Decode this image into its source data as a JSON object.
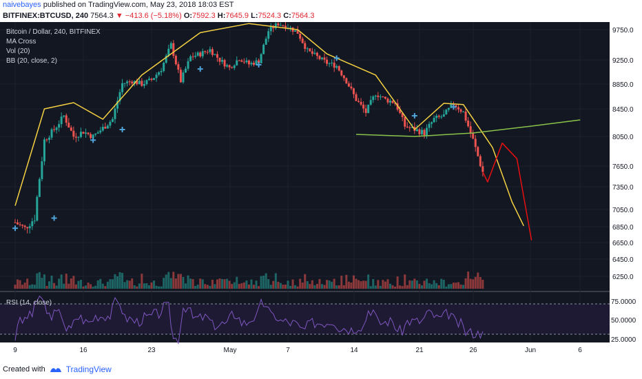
{
  "header": {
    "author": "naivebayes",
    "published_text": "published on TradingView.com, May 23, 2018 18:03 EST",
    "symbol": "BITFINEX:BTCUSD, 240",
    "last_price": "7564.3",
    "change": "▼ −413.6 (−5.18%)",
    "ohlc": {
      "o_label": "O:",
      "o": "7592.3",
      "h_label": "H:",
      "h": "7645.9",
      "l_label": "L:",
      "l": "7524.3",
      "c_label": "C:",
      "c": "7564.3"
    }
  },
  "legend": [
    "Bitcoin / Dollar, 240, BITFINEX",
    "MA Cross",
    "Vol (20)",
    "BB (20, close, 2)"
  ],
  "rsi_label": "RSI (14, close)",
  "footer": {
    "created_with": "Created with",
    "brand": "TradingView"
  },
  "colors": {
    "background": "#131722",
    "up": "#26a69a",
    "down": "#ef5350",
    "projection_yellow": "#f5d142",
    "projection_red": "#e81010",
    "ma_green": "#8bc34a",
    "rsi": "#7e57c2",
    "marker": "#4fa3d8"
  },
  "chart_data": {
    "type": "candlestick",
    "y_axis_labels": [
      "9750.0",
      "9250.0",
      "8850.0",
      "8450.0",
      "8050.0",
      "7650.0",
      "7350.0",
      "7050.0",
      "6850.0",
      "6650.0",
      "6450.0",
      "6250.0"
    ],
    "ylim": [
      6150,
      9900
    ],
    "x_axis_labels": [
      "9",
      "16",
      "23",
      "May",
      "7",
      "14",
      "21",
      "26",
      "Jun",
      "6"
    ],
    "rsi_axis_labels": [
      "75.0000",
      "50.0000",
      "25.0000"
    ],
    "rsi_bands": [
      70,
      30
    ],
    "price_path_days": [
      [
        9,
        6900
      ],
      [
        10,
        6830
      ],
      [
        11,
        6950
      ],
      [
        12,
        8000
      ],
      [
        13,
        8150
      ],
      [
        14,
        8350
      ],
      [
        15,
        8050
      ],
      [
        16,
        8120
      ],
      [
        17,
        8050
      ],
      [
        18,
        8170
      ],
      [
        19,
        8300
      ],
      [
        20,
        8860
      ],
      [
        21,
        8900
      ],
      [
        22,
        8850
      ],
      [
        23,
        8920
      ],
      [
        24,
        9100
      ],
      [
        25,
        9500
      ],
      [
        26,
        8900
      ],
      [
        27,
        9300
      ],
      [
        28,
        9350
      ],
      [
        29,
        9420
      ],
      [
        30,
        9250
      ],
      [
        31,
        9120
      ],
      [
        32,
        9280
      ],
      [
        33,
        9180
      ],
      [
        34,
        9230
      ],
      [
        35,
        9730
      ],
      [
        36,
        9850
      ],
      [
        37,
        9800
      ],
      [
        38,
        9700
      ],
      [
        39,
        9400
      ],
      [
        40,
        9300
      ],
      [
        41,
        9200
      ],
      [
        42,
        9150
      ],
      [
        43,
        8900
      ],
      [
        44,
        8600
      ],
      [
        45,
        8400
      ],
      [
        46,
        8700
      ],
      [
        47,
        8600
      ],
      [
        48,
        8550
      ],
      [
        49,
        8200
      ],
      [
        50,
        8150
      ],
      [
        51,
        8100
      ],
      [
        52,
        8300
      ],
      [
        53,
        8350
      ],
      [
        54,
        8530
      ],
      [
        55,
        8400
      ],
      [
        56,
        8000
      ],
      [
        57,
        7564
      ]
    ],
    "projection_red_days": [
      [
        57,
        7564
      ],
      [
        57.5,
        7420
      ],
      [
        59,
        7960
      ],
      [
        60.5,
        7750
      ],
      [
        62,
        6680
      ]
    ],
    "projection_yellow_days": [
      [
        9,
        7100
      ],
      [
        12,
        8450
      ],
      [
        15,
        8550
      ],
      [
        18,
        8300
      ],
      [
        22,
        9000
      ],
      [
        28,
        9700
      ],
      [
        33,
        9850
      ],
      [
        38,
        9750
      ],
      [
        41,
        9350
      ],
      [
        46,
        9000
      ],
      [
        50,
        8150
      ],
      [
        53,
        8540
      ],
      [
        55,
        8520
      ],
      [
        58,
        7900
      ],
      [
        60,
        7150
      ],
      [
        61.2,
        6860
      ]
    ],
    "ma_green_days": [
      [
        44,
        8080
      ],
      [
        50,
        8050
      ],
      [
        56,
        8100
      ],
      [
        62,
        8200
      ],
      [
        67,
        8290
      ]
    ]
  }
}
